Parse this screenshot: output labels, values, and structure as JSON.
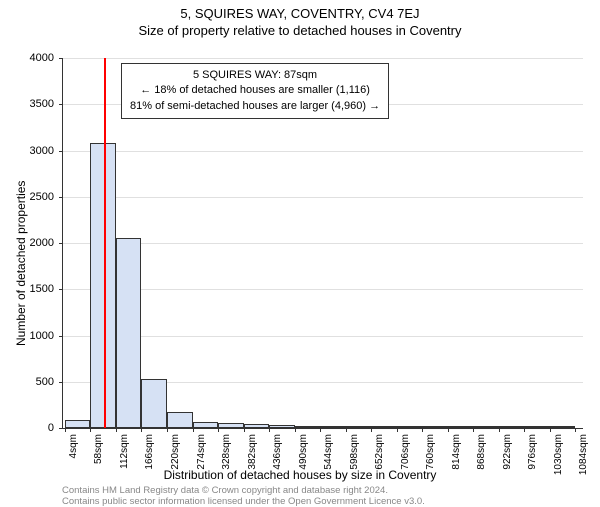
{
  "title": "5, SQUIRES WAY, COVENTRY, CV4 7EJ",
  "subtitle": "Size of property relative to detached houses in Coventry",
  "y_axis_label": "Number of detached properties",
  "x_axis_label": "Distribution of detached houses by size in Coventry",
  "credit1": "Contains HM Land Registry data © Crown copyright and database right 2024.",
  "credit2": "Contains public sector information licensed under the Open Government Licence v3.0.",
  "chart": {
    "type": "histogram",
    "y_max": 4000,
    "y_tick_step": 500,
    "y_ticks": [
      0,
      500,
      1000,
      1500,
      2000,
      2500,
      3000,
      3500,
      4000
    ],
    "x_min": 0,
    "x_max": 1100,
    "x_tick_step": 54,
    "x_tick_start": 4,
    "x_tick_labels": [
      "4sqm",
      "58sqm",
      "112sqm",
      "166sqm",
      "220sqm",
      "274sqm",
      "328sqm",
      "382sqm",
      "436sqm",
      "490sqm",
      "544sqm",
      "598sqm",
      "652sqm",
      "706sqm",
      "760sqm",
      "814sqm",
      "868sqm",
      "922sqm",
      "976sqm",
      "1030sqm",
      "1084sqm"
    ],
    "bar_fill": "#d6e1f4",
    "bar_border": "#333333",
    "grid_color": "#e0e0e0",
    "background_color": "#ffffff",
    "bars": [
      {
        "x": 4,
        "width": 54,
        "value": 90
      },
      {
        "x": 58,
        "width": 54,
        "value": 3080
      },
      {
        "x": 112,
        "width": 54,
        "value": 2050
      },
      {
        "x": 166,
        "width": 54,
        "value": 530
      },
      {
        "x": 220,
        "width": 54,
        "value": 170
      },
      {
        "x": 274,
        "width": 54,
        "value": 70
      },
      {
        "x": 328,
        "width": 54,
        "value": 55
      },
      {
        "x": 382,
        "width": 54,
        "value": 40
      },
      {
        "x": 436,
        "width": 54,
        "value": 35
      },
      {
        "x": 490,
        "width": 54,
        "value": 25
      },
      {
        "x": 544,
        "width": 54,
        "value": 8
      },
      {
        "x": 598,
        "width": 54,
        "value": 6
      },
      {
        "x": 652,
        "width": 54,
        "value": 4
      },
      {
        "x": 706,
        "width": 54,
        "value": 4
      },
      {
        "x": 760,
        "width": 54,
        "value": 3
      },
      {
        "x": 814,
        "width": 54,
        "value": 3
      },
      {
        "x": 868,
        "width": 54,
        "value": 2
      },
      {
        "x": 922,
        "width": 54,
        "value": 2
      },
      {
        "x": 976,
        "width": 54,
        "value": 2
      },
      {
        "x": 1030,
        "width": 54,
        "value": 2
      }
    ],
    "marker": {
      "x": 87,
      "color": "#ff0000"
    },
    "annotation": {
      "line1": "5 SQUIRES WAY: 87sqm",
      "line2": "← 18% of detached houses are smaller (1,116)",
      "line3": "81% of semi-detached houses are larger (4,960) →",
      "border_color": "#333333",
      "background_color": "#ffffff",
      "fontsize": 11
    },
    "title_fontsize": 13,
    "label_fontsize": 12,
    "tick_fontsize": 11,
    "xtick_fontsize": 10
  }
}
